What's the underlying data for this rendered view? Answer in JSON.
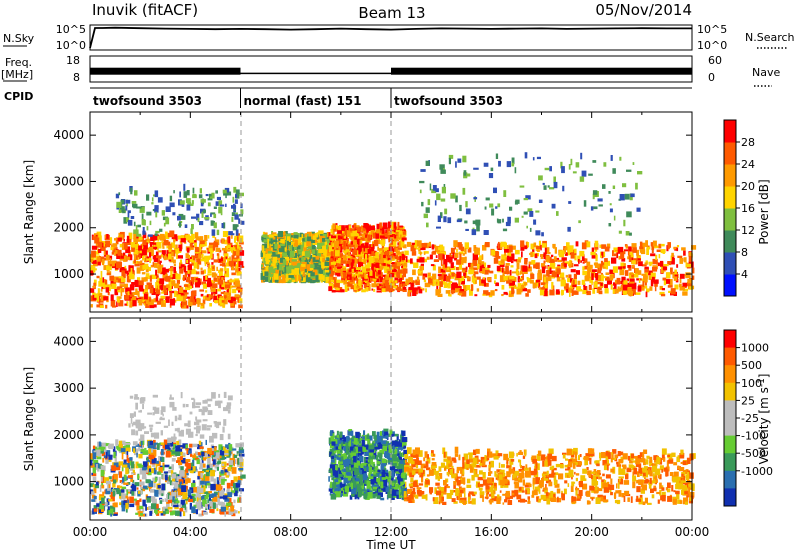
{
  "header": {
    "station": "Inuvik (fitACF)",
    "beam": "Beam 13",
    "date": "05/Nov/2014"
  },
  "panel_labels": {
    "nsky": "N.Sky",
    "freq_top": "Freq.",
    "freq_bottom": "[MHz]",
    "cpid": "CPID",
    "nsearch": "N.Search",
    "nave": "Nave"
  },
  "chart_data": [
    {
      "type": "line",
      "title": "N.Sky / N.Search",
      "yscale": "log",
      "ytick_labels_left": [
        "10^5",
        "10^0"
      ],
      "ytick_labels_right": [
        "10^5",
        "10^0"
      ],
      "x_hours": [
        0,
        0.2,
        0.5,
        1,
        2,
        3,
        4,
        5,
        6,
        7,
        8,
        9,
        10,
        11,
        12,
        13,
        14,
        15,
        16,
        17,
        18,
        19,
        20,
        21,
        22,
        23,
        24
      ],
      "series": [
        {
          "name": "N.Sky",
          "style": "solid",
          "values": [
            1,
            100000,
            100000,
            120000,
            90000,
            70000,
            60000,
            50000,
            60000,
            50000,
            40000,
            50000,
            70000,
            50000,
            40000,
            60000,
            80000,
            70000,
            60000,
            70000,
            80000,
            60000,
            70000,
            80000,
            90000,
            80000,
            80000
          ]
        }
      ]
    },
    {
      "type": "line",
      "title": "Freq. [MHz] / Nave",
      "ytick_labels_left": [
        "18",
        "8"
      ],
      "ytick_labels_right": [
        "60",
        "0"
      ],
      "x_hours": [
        0,
        6,
        6.0,
        12,
        12.0,
        24
      ],
      "series": [
        {
          "name": "Freq.",
          "values": [
            12,
            12,
            11,
            11,
            12,
            12
          ]
        }
      ]
    },
    {
      "type": "table",
      "title": "CPID",
      "segments": [
        {
          "label": "twofsound 3503",
          "start_hour": 0,
          "end_hour": 6
        },
        {
          "label": "normal (fast) 151",
          "start_hour": 6,
          "end_hour": 12
        },
        {
          "label": "twofsound 3503",
          "start_hour": 12,
          "end_hour": 24
        }
      ]
    },
    {
      "type": "heatmap",
      "title": "Power",
      "ylabel": "Slant Range [km]",
      "xlim": [
        0,
        24
      ],
      "ylim": [
        180,
        4500
      ],
      "yticks": [
        1000,
        2000,
        3000,
        4000
      ],
      "colorbar_label": "Power [dB]",
      "colorbar_ticks": [
        "4",
        "8",
        "12",
        "16",
        "20",
        "24",
        "28"
      ],
      "colorbar_colors": [
        "#0010ff",
        "#2f4fb5",
        "#3f8a5a",
        "#7fbf3f",
        "#ffd400",
        "#ff9a00",
        "#ff5a00",
        "#ff0000"
      ],
      "echo_regions": [
        {
          "start_hour": 0.0,
          "end_hour": 6.0,
          "range_low": 250,
          "range_high": 1800,
          "level": "strong"
        },
        {
          "start_hour": 1.0,
          "end_hour": 6.0,
          "range_low": 1800,
          "range_high": 2800,
          "level": "weak"
        },
        {
          "start_hour": 6.8,
          "end_hour": 9.5,
          "range_low": 800,
          "range_high": 1800,
          "level": "medium"
        },
        {
          "start_hour": 9.5,
          "end_hour": 12.5,
          "range_low": 600,
          "range_high": 2000,
          "level": "strong"
        },
        {
          "start_hour": 12.5,
          "end_hour": 24.0,
          "range_low": 500,
          "range_high": 1600,
          "level": "strong"
        },
        {
          "start_hour": 13.0,
          "end_hour": 22.0,
          "range_low": 1800,
          "range_high": 3500,
          "level": "weak"
        }
      ]
    },
    {
      "type": "heatmap",
      "title": "Velocity",
      "xlabel": "Time UT",
      "ylabel": "Slant Range [km]",
      "xlim": [
        0,
        24
      ],
      "ylim": [
        180,
        4500
      ],
      "yticks": [
        1000,
        2000,
        3000,
        4000
      ],
      "xtick_labels": [
        "00:00",
        "04:00",
        "08:00",
        "12:00",
        "16:00",
        "20:00",
        "00:00"
      ],
      "colorbar_label": "Velocity [m s-1]",
      "colorbar_ticks": [
        "1000",
        "500",
        "100",
        "25",
        "-25",
        "-100",
        "-500",
        "-1000"
      ],
      "colorbar_colors": [
        "#1030b0",
        "#2a6fb0",
        "#3a9a5a",
        "#66cc33",
        "#bdbdbd",
        "#bdbdbd",
        "#f2c200",
        "#ff9000",
        "#ff5a00",
        "#ff0000"
      ],
      "echo_regions": [
        {
          "start_hour": 0.0,
          "end_hour": 6.0,
          "range_low": 250,
          "range_high": 1800,
          "level": "mixed"
        },
        {
          "start_hour": 1.5,
          "end_hour": 5.5,
          "range_low": 1800,
          "range_high": 2800,
          "level": "ground"
        },
        {
          "start_hour": 9.5,
          "end_hour": 12.5,
          "range_low": 600,
          "range_high": 2000,
          "level": "toward"
        },
        {
          "start_hour": 12.5,
          "end_hour": 24.0,
          "range_low": 500,
          "range_high": 1600,
          "level": "away"
        }
      ]
    }
  ]
}
